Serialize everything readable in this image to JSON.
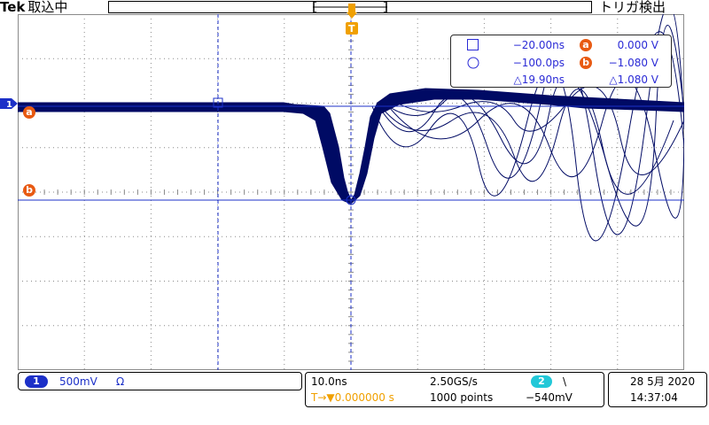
{
  "app": {
    "brand": "Tek",
    "acq_status": "取込中",
    "trigger_status": "トリガ検出"
  },
  "colors": {
    "ch1": "#1414c8",
    "waveform": "#000a64",
    "cursor": "#1c30c8",
    "marker": "#e85a12",
    "trigger": "#f0a000",
    "ch2": "#22c8d8",
    "grid": "#8a8a8a"
  },
  "markers": {
    "ch1_label": "1",
    "cursor_a": "a",
    "cursor_b": "b",
    "trigger_label": "T"
  },
  "cursor_readout": {
    "row1_time": "−20.00ns",
    "row1_voltage": "0.000 V",
    "row2_time": "−100.0ps",
    "row2_voltage": "−1.080 V",
    "delta_time": "△19.90ns",
    "delta_voltage": "△1.080 V",
    "square_icon": "square-cursor-icon",
    "circle_icon": "circle-cursor-icon"
  },
  "channel1": {
    "badge": "1",
    "scale": "500mV",
    "coupling": "Ω"
  },
  "timebase": {
    "scale": "10.0ns",
    "sample_rate": "2.50GS/s",
    "trigger_position": "T→▼0.000000 s",
    "record_length": "1000 points",
    "trigger_source": "2",
    "trigger_slope": "\\",
    "trigger_level": "−540mV"
  },
  "datetime": {
    "date": "28 5月 2020",
    "time": "14:37:04"
  }
}
